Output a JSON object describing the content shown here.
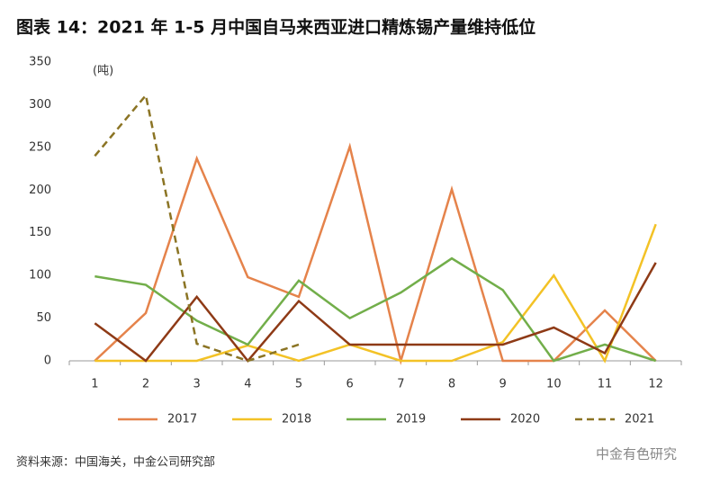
{
  "chart_data": {
    "type": "line",
    "title": "图表 14：2021 年 1-5 月中国自马来西亚进口精炼锡产量维持低位",
    "unit_label": "(吨)",
    "source": "资料来源：中国海关，中金公司研究部",
    "watermark": "中金有色研究",
    "categories": [
      "1",
      "2",
      "3",
      "4",
      "5",
      "6",
      "7",
      "8",
      "9",
      "10",
      "11",
      "12"
    ],
    "series": [
      {
        "name": "2017",
        "color": "#E5834B",
        "dashed": false,
        "values": [
          0,
          56,
          237,
          98,
          75,
          251,
          0,
          201,
          0,
          0,
          59,
          0
        ]
      },
      {
        "name": "2018",
        "color": "#F3C226",
        "dashed": false,
        "values": [
          0,
          0,
          0,
          18,
          0,
          19,
          0,
          0,
          22,
          100,
          0,
          160
        ]
      },
      {
        "name": "2019",
        "color": "#72AE4A",
        "dashed": false,
        "values": [
          99,
          89,
          47,
          19,
          94,
          50,
          80,
          120,
          83,
          0,
          19,
          0
        ]
      },
      {
        "name": "2020",
        "color": "#8E3A16",
        "dashed": false,
        "values": [
          44,
          0,
          75,
          0,
          70,
          19,
          19,
          19,
          19,
          39,
          9,
          115
        ]
      },
      {
        "name": "2021",
        "color": "#8B7424",
        "dashed": true,
        "values": [
          240,
          311,
          20,
          0,
          19,
          null,
          null,
          null,
          null,
          null,
          null,
          null
        ]
      }
    ],
    "ylim": [
      0,
      350
    ],
    "yticks": [
      0,
      50,
      100,
      150,
      200,
      250,
      300,
      350
    ],
    "grid": false,
    "legend": "bottom"
  }
}
